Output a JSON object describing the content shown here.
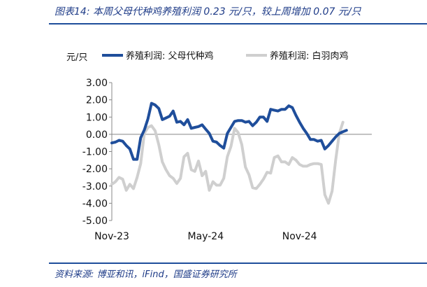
{
  "header": {
    "title": "图表14:  本周父母代种鸡养殖利润 0.23 元/只，较上周增加 0.07 元/只"
  },
  "footer": {
    "source": "资料来源:  博亚和讯，iFind，国盛证券研究所"
  },
  "colors": {
    "series_1": "#1f4e9b",
    "series_2": "#cfcfcf",
    "accent": "#1f4e9b"
  },
  "chart_data": {
    "type": "line",
    "unit": "元/只",
    "ylim": [
      -5,
      3
    ],
    "yticks": [
      "3.00",
      "2.00",
      "1.00",
      "0.00",
      "-1.00",
      "-2.00",
      "-3.00",
      "-4.00",
      "-5.00"
    ],
    "ytick_values": [
      3,
      2,
      1,
      0,
      -1,
      -2,
      -3,
      -4,
      -5
    ],
    "xticks": [
      "Nov-23",
      "May-24",
      "Nov-24"
    ],
    "xtick_positions": [
      0,
      26,
      52
    ],
    "xlim": [
      0,
      72
    ],
    "grid": false,
    "legend_position": "top",
    "series": [
      {
        "name": "养殖利润: 父母代种鸡",
        "values": [
          -0.5,
          -0.45,
          -0.35,
          -0.4,
          -0.65,
          -0.85,
          -1.45,
          -1.45,
          -0.2,
          0.25,
          0.9,
          1.8,
          1.7,
          1.5,
          0.85,
          0.95,
          1.05,
          1.35,
          0.7,
          0.75,
          0.55,
          0.85,
          0.35,
          0.4,
          0.45,
          0.55,
          0.3,
          0.05,
          -0.4,
          -0.45,
          -0.65,
          -0.8,
          0.05,
          0.4,
          0.75,
          0.8,
          0.8,
          0.7,
          0.75,
          0.5,
          0.7,
          1.0,
          1.0,
          0.75,
          1.45,
          1.4,
          1.35,
          1.45,
          1.45,
          1.65,
          1.55,
          1.1,
          0.7,
          0.35,
          0.05,
          -0.3,
          -0.3,
          -0.4,
          -0.35,
          -0.85,
          -0.65,
          -0.4,
          -0.15,
          0.05,
          0.15,
          0.23
        ]
      },
      {
        "name": "养殖利润: 白羽肉鸡",
        "values": [
          -2.9,
          -2.75,
          -2.5,
          -2.6,
          -3.25,
          -2.9,
          -3.15,
          -2.5,
          -1.7,
          0.05,
          0.4,
          0.5,
          0.2,
          -0.6,
          -1.6,
          -2.05,
          -2.4,
          -2.55,
          -2.85,
          -2.55,
          -1.3,
          -1.1,
          -2.05,
          -2.15,
          -1.55,
          -2.4,
          -2.15,
          -3.25,
          -2.75,
          -2.95,
          -2.95,
          -2.55,
          -1.3,
          -0.7,
          0.35,
          0.1,
          -0.6,
          -1.9,
          -2.35,
          -3.1,
          -3.15,
          -2.9,
          -2.6,
          -2.2,
          -2.25,
          -1.35,
          -1.25,
          -1.6,
          -1.6,
          -1.75,
          -1.35,
          -1.5,
          -1.75,
          -1.85,
          -1.85,
          -1.75,
          -1.7,
          -1.7,
          -1.75,
          -3.5,
          -4.0,
          -3.3,
          -1.5,
          0.05,
          0.7
        ]
      }
    ]
  }
}
